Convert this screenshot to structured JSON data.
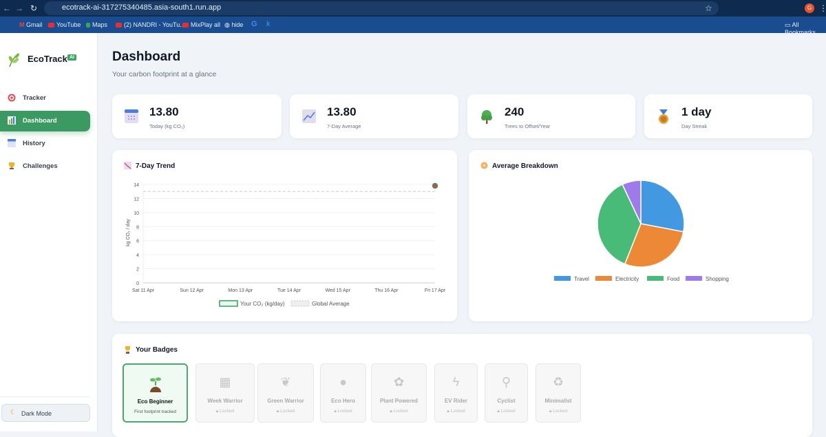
{
  "browser": {
    "url": "ecotrack-ai-317275340485.asia-south1.run.app",
    "profile_initial": "G",
    "bookmarks": [
      "Gmail",
      "YouTube",
      "Maps",
      "(2) NANDRI - YouTu...",
      "MixPlay all",
      "hide",
      "All Bookmarks"
    ]
  },
  "sidebar": {
    "brand": "EcoTrack",
    "badge": "AI",
    "items": [
      {
        "label": "Tracker",
        "icon": "target-icon"
      },
      {
        "label": "Dashboard",
        "icon": "bar-chart-icon",
        "active": true
      },
      {
        "label": "History",
        "icon": "calendar-icon"
      },
      {
        "label": "Challenges",
        "icon": "trophy-icon"
      }
    ],
    "dark_mode": "Dark Mode"
  },
  "header": {
    "title": "Dashboard",
    "subtitle": "Your carbon footprint at a glance"
  },
  "stats": [
    {
      "value": "13.80",
      "label": "Today (kg CO₂)",
      "icon": "calendar-icon"
    },
    {
      "value": "13.80",
      "label": "7-Day Average",
      "icon": "chart-icon"
    },
    {
      "value": "240",
      "label": "Trees to Offset/Year",
      "icon": "tree-icon"
    },
    {
      "value": "1 day",
      "label": "Day Streak",
      "icon": "medal-icon"
    }
  ],
  "chart_data": [
    {
      "type": "line",
      "title": "7-Day Trend",
      "ylabel": "kg CO₂ / day",
      "ylim": [
        0,
        14
      ],
      "yticks": [
        0,
        2,
        4,
        6,
        8,
        10,
        12,
        14
      ],
      "x": [
        "Sat 11 Apr",
        "Sun 12 Apr",
        "Mon 13 Apr",
        "Tue 14 Apr",
        "Wed 15 Apr",
        "Thu 16 Apr",
        "Fri 17 Apr"
      ],
      "series": [
        {
          "name": "Your CO₂ (kg/day)",
          "values": [
            null,
            null,
            null,
            null,
            null,
            null,
            13.8
          ],
          "color": "#3a9a62"
        },
        {
          "name": "Global Average",
          "values": [
            13,
            13,
            13,
            13,
            13,
            13,
            13
          ],
          "color": "#cccccc",
          "dashed": true
        }
      ],
      "grid": true,
      "legend": "bottom"
    },
    {
      "type": "pie",
      "title": "Average Breakdown",
      "categories": [
        "Travel",
        "Electricity",
        "Food",
        "Shopping"
      ],
      "values": [
        28,
        28,
        37,
        7
      ],
      "colors": [
        "#4299e1",
        "#ed8936",
        "#48bb78",
        "#9f7aea"
      ],
      "legend": "bottom"
    }
  ],
  "badges": {
    "title": "Your Badges",
    "items": [
      {
        "name": "Eco Beginner",
        "status": "First footprint tracked",
        "unlocked": true
      },
      {
        "name": "Week Warrior",
        "status": "Locked"
      },
      {
        "name": "Green Warrior",
        "status": "Locked"
      },
      {
        "name": "Eco Hero",
        "status": "Locked"
      },
      {
        "name": "Plant Powered",
        "status": "Locked"
      },
      {
        "name": "EV Rider",
        "status": "Locked"
      },
      {
        "name": "Cyclist",
        "status": "Locked"
      },
      {
        "name": "Minimalist",
        "status": "Locked"
      }
    ]
  }
}
